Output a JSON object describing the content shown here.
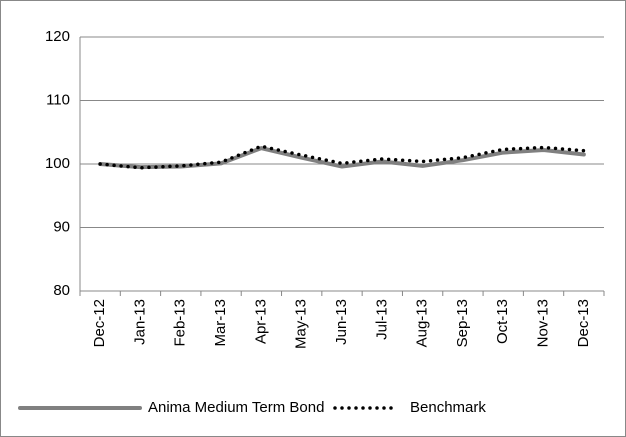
{
  "chart_data": {
    "type": "line",
    "categories": [
      "Dec-12",
      "Jan-13",
      "Feb-13",
      "Mar-13",
      "Apr-13",
      "May-13",
      "Jun-13",
      "Jul-13",
      "Aug-13",
      "Sep-13",
      "Oct-13",
      "Nov-13",
      "Dec-13"
    ],
    "series": [
      {
        "name": "Anima Medium Term Bond",
        "color": "#808080",
        "values": [
          100,
          99.5,
          99.6,
          100.1,
          102.5,
          101.0,
          99.6,
          100.4,
          99.7,
          100.6,
          101.8,
          102.2,
          101.5
        ]
      },
      {
        "name": "Benchmark",
        "color": "#000000",
        "values": [
          100,
          99.4,
          99.7,
          100.3,
          102.8,
          101.4,
          100.1,
          100.8,
          100.4,
          101.0,
          102.3,
          102.6,
          102.1
        ]
      }
    ],
    "ylim": [
      80,
      120
    ],
    "yticks": [
      80,
      90,
      100,
      110,
      120
    ],
    "grid": true,
    "legend": "bottom"
  }
}
